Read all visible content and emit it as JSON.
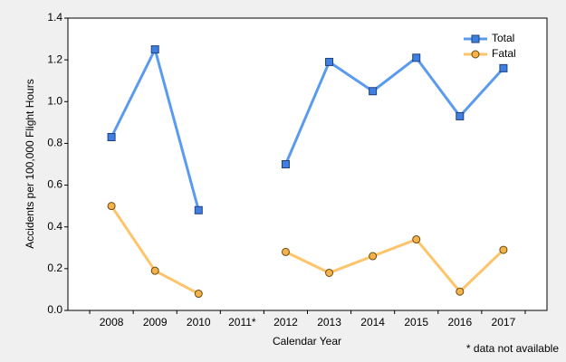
{
  "chart_data": {
    "type": "line",
    "y_label": "Accidents per 100,000 Flight Hours",
    "x_label": "Calendar Year",
    "annotation": "* data not available",
    "categories": [
      "2008",
      "2009",
      "2010",
      "2011*",
      "2012",
      "2013",
      "2014",
      "2015",
      "2016",
      "2017"
    ],
    "series": [
      {
        "name": "Total",
        "color": "#5b9bef",
        "marker": "square",
        "marker_color": "#3f7fe0",
        "values": [
          0.83,
          1.25,
          0.48,
          null,
          0.7,
          1.19,
          1.05,
          1.21,
          0.93,
          1.16
        ]
      },
      {
        "name": "Fatal",
        "color": "#fdc46a",
        "marker": "circle",
        "marker_color": "#f3b24a",
        "values": [
          0.5,
          0.19,
          0.08,
          null,
          0.28,
          0.18,
          0.26,
          0.34,
          0.09,
          0.29
        ]
      }
    ],
    "ylim": [
      0,
      1.4
    ],
    "yticks": [
      {
        "value": 0,
        "label": "0.0"
      },
      0.2,
      0.4,
      0.6,
      0.8,
      {
        "value": 1,
        "label": "1.0"
      },
      1.2,
      1.4
    ],
    "legend": "upper right"
  }
}
